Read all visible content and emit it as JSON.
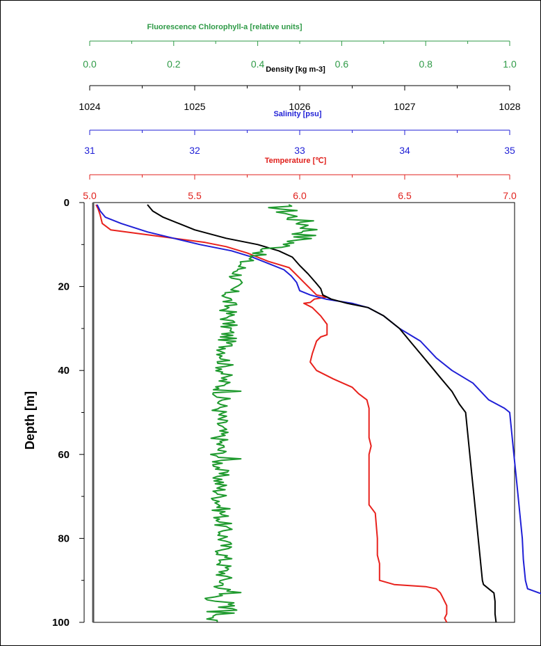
{
  "chart_data": {
    "type": "line",
    "y_axis": {
      "label": "Depth [m]",
      "range": [
        0,
        100
      ],
      "inverted": true,
      "ticks": [
        "0",
        "20",
        "40",
        "60",
        "80",
        "100"
      ]
    },
    "x_axes": [
      {
        "id": "fluorescence",
        "label": "Fluorescence Chlorophyll-a [relative units]",
        "color": "#2e9a46",
        "range": [
          0.0,
          1.0
        ],
        "ticks": [
          "0.0",
          "0.2",
          "0.4",
          "0.6",
          "0.8",
          "1.0"
        ]
      },
      {
        "id": "density",
        "label": "Density [kg m-3]",
        "color": "#000000",
        "range": [
          1024,
          1028
        ],
        "ticks": [
          "1024",
          "1025",
          "1026",
          "1027",
          "1028"
        ]
      },
      {
        "id": "salinity",
        "label": "Salinity [psu]",
        "color": "#1f1fd6",
        "range": [
          31,
          35
        ],
        "ticks": [
          "31",
          "32",
          "33",
          "34",
          "35"
        ]
      },
      {
        "id": "temperature",
        "label": "Temperature [℃]",
        "color": "#e0201c",
        "range": [
          5.0,
          7.0
        ],
        "ticks": [
          "5.0",
          "5.5",
          "6.0",
          "6.5",
          "7.0"
        ]
      }
    ],
    "series": [
      {
        "axis": "temperature",
        "color": "#e8211c",
        "points": [
          [
            5.03,
            0.5
          ],
          [
            5.04,
            1.5
          ],
          [
            5.05,
            3
          ],
          [
            5.06,
            5
          ],
          [
            5.1,
            6.5
          ],
          [
            5.25,
            7.5
          ],
          [
            5.4,
            8.5
          ],
          [
            5.55,
            9.5
          ],
          [
            5.65,
            10.5
          ],
          [
            5.75,
            12
          ],
          [
            5.85,
            14
          ],
          [
            5.95,
            15.5
          ],
          [
            5.98,
            17
          ],
          [
            6.0,
            18
          ],
          [
            6.02,
            19
          ],
          [
            6.04,
            20
          ],
          [
            6.06,
            21
          ],
          [
            6.08,
            22
          ],
          [
            6.13,
            22.5
          ],
          [
            6.07,
            23
          ],
          [
            6.05,
            23.8
          ],
          [
            6.02,
            24
          ],
          [
            6.06,
            25
          ],
          [
            6.1,
            27
          ],
          [
            6.13,
            29
          ],
          [
            6.13,
            31.5
          ],
          [
            6.1,
            32
          ],
          [
            6.08,
            33
          ],
          [
            6.06,
            36
          ],
          [
            6.05,
            38
          ],
          [
            6.08,
            40
          ],
          [
            6.16,
            42
          ],
          [
            6.25,
            44
          ],
          [
            6.28,
            45.5
          ],
          [
            6.32,
            47
          ],
          [
            6.33,
            49
          ],
          [
            6.33,
            52
          ],
          [
            6.33,
            56
          ],
          [
            6.34,
            58
          ],
          [
            6.33,
            60
          ],
          [
            6.33,
            65
          ],
          [
            6.33,
            72
          ],
          [
            6.36,
            74
          ],
          [
            6.37,
            80
          ],
          [
            6.37,
            84
          ],
          [
            6.38,
            86
          ],
          [
            6.38,
            88
          ],
          [
            6.38,
            90
          ],
          [
            6.45,
            91
          ],
          [
            6.6,
            91.5
          ],
          [
            6.65,
            92
          ],
          [
            6.67,
            93
          ],
          [
            6.68,
            94
          ],
          [
            6.69,
            95
          ],
          [
            6.7,
            96
          ],
          [
            6.7,
            98
          ],
          [
            6.69,
            99
          ],
          [
            6.7,
            100
          ]
        ]
      },
      {
        "axis": "salinity",
        "color": "#1f1fd6",
        "points": [
          [
            31.07,
            0.5
          ],
          [
            31.1,
            2
          ],
          [
            31.15,
            3.5
          ],
          [
            31.3,
            5
          ],
          [
            31.55,
            7
          ],
          [
            31.8,
            8.5
          ],
          [
            32.05,
            10
          ],
          [
            32.35,
            11.5
          ],
          [
            32.55,
            13
          ],
          [
            32.7,
            14.5
          ],
          [
            32.85,
            16
          ],
          [
            32.92,
            17.5
          ],
          [
            32.97,
            19
          ],
          [
            33.0,
            21
          ],
          [
            33.1,
            22
          ],
          [
            33.25,
            23
          ],
          [
            33.5,
            24
          ],
          [
            33.65,
            25
          ],
          [
            33.8,
            27
          ],
          [
            33.95,
            30
          ],
          [
            34.15,
            33
          ],
          [
            34.3,
            37
          ],
          [
            34.45,
            40
          ],
          [
            34.65,
            43
          ],
          [
            34.8,
            47
          ],
          [
            34.95,
            49
          ],
          [
            35.0,
            50
          ],
          [
            35.02,
            55
          ],
          [
            35.04,
            60
          ],
          [
            35.06,
            65
          ],
          [
            35.08,
            70
          ],
          [
            35.1,
            75
          ],
          [
            35.12,
            80
          ],
          [
            35.13,
            85
          ],
          [
            35.15,
            90
          ],
          [
            35.17,
            92
          ],
          [
            35.28,
            93
          ],
          [
            35.42,
            94
          ],
          [
            35.48,
            96
          ],
          [
            35.49,
            98
          ],
          [
            35.5,
            100
          ]
        ]
      },
      {
        "axis": "density",
        "color": "#000000",
        "points": [
          [
            1024.55,
            0.5
          ],
          [
            1024.6,
            2
          ],
          [
            1024.7,
            3.5
          ],
          [
            1024.85,
            5
          ],
          [
            1025.0,
            6.5
          ],
          [
            1025.3,
            8.5
          ],
          [
            1025.6,
            10
          ],
          [
            1025.8,
            11.5
          ],
          [
            1025.93,
            13
          ],
          [
            1026.0,
            15
          ],
          [
            1026.08,
            17
          ],
          [
            1026.15,
            19
          ],
          [
            1026.2,
            20.5
          ],
          [
            1026.22,
            22
          ],
          [
            1026.3,
            23
          ],
          [
            1026.45,
            24
          ],
          [
            1026.65,
            25
          ],
          [
            1026.8,
            27
          ],
          [
            1026.95,
            30
          ],
          [
            1027.05,
            33
          ],
          [
            1027.15,
            36
          ],
          [
            1027.25,
            39
          ],
          [
            1027.35,
            42
          ],
          [
            1027.45,
            45
          ],
          [
            1027.52,
            48
          ],
          [
            1027.58,
            50
          ],
          [
            1027.6,
            55
          ],
          [
            1027.62,
            60
          ],
          [
            1027.64,
            65
          ],
          [
            1027.66,
            70
          ],
          [
            1027.68,
            75
          ],
          [
            1027.7,
            80
          ],
          [
            1027.72,
            85
          ],
          [
            1027.74,
            90
          ],
          [
            1027.75,
            91
          ],
          [
            1027.8,
            92
          ],
          [
            1027.85,
            93
          ],
          [
            1027.86,
            95
          ],
          [
            1027.86,
            98
          ],
          [
            1027.87,
            100
          ]
        ]
      },
      {
        "axis": "fluorescence",
        "color": "#1f9a2e",
        "seed": 17,
        "profile": [
          [
            0,
            0.44
          ],
          [
            3,
            0.48
          ],
          [
            6,
            0.53
          ],
          [
            9,
            0.5
          ],
          [
            11,
            0.44
          ],
          [
            13,
            0.38
          ],
          [
            15,
            0.36
          ],
          [
            18,
            0.35
          ],
          [
            22,
            0.33
          ],
          [
            30,
            0.33
          ],
          [
            40,
            0.32
          ],
          [
            50,
            0.31
          ],
          [
            60,
            0.31
          ],
          [
            70,
            0.31
          ],
          [
            80,
            0.32
          ],
          [
            90,
            0.32
          ],
          [
            93,
            0.31
          ],
          [
            100,
            0.32
          ]
        ],
        "spikes": [
          [
            44,
            0.3
          ],
          [
            45,
            0.36
          ],
          [
            61,
            0.36
          ],
          [
            93,
            0.36
          ],
          [
            95,
            0.3
          ],
          [
            97,
            0.35
          ]
        ]
      }
    ],
    "grid": false,
    "legend": "none"
  }
}
